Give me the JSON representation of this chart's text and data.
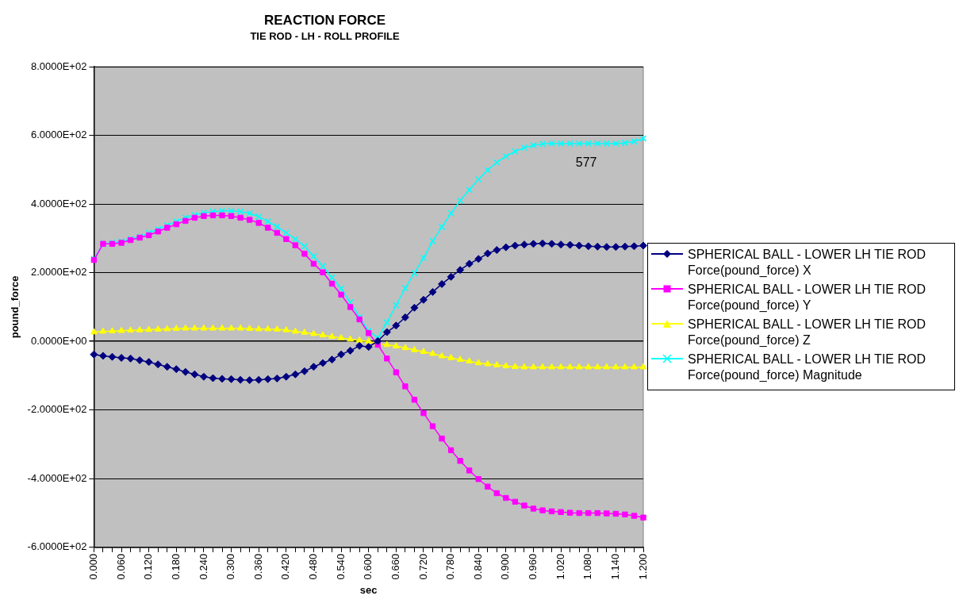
{
  "chart_data": {
    "type": "line",
    "title": "REACTION FORCE",
    "subtitle": "TIE ROD - LH - ROLL PROFILE",
    "xlabel": "sec",
    "ylabel": "pound_force",
    "categories": [
      "0.000",
      null,
      null,
      "0.060",
      null,
      null,
      "0.120",
      null,
      null,
      "0.180",
      null,
      null,
      "0.240",
      null,
      null,
      "0.300",
      null,
      null,
      "0.360",
      null,
      null,
      "0.420",
      null,
      null,
      "0.480",
      null,
      null,
      "0.540",
      null,
      null,
      "0.600",
      null,
      null,
      "0.660",
      null,
      null,
      "0.720",
      null,
      null,
      "0.780",
      null,
      null,
      "0.840",
      null,
      null,
      "0.900",
      null,
      null,
      "0.960",
      null,
      null,
      "1.020",
      null,
      null,
      "1.080",
      null,
      null,
      "1.140",
      null,
      null,
      "1.200"
    ],
    "ylim": [
      -600,
      800
    ],
    "yticks": [
      {
        "value": -600,
        "label": "-6.0000E+02"
      },
      {
        "value": -400,
        "label": "-4.0000E+02"
      },
      {
        "value": -200,
        "label": "-2.0000E+02"
      },
      {
        "value": 0,
        "label": "0.0000E+00"
      },
      {
        "value": 200,
        "label": "2.0000E+02"
      },
      {
        "value": 400,
        "label": "4.0000E+02"
      },
      {
        "value": 600,
        "label": "6.0000E+02"
      },
      {
        "value": 800,
        "label": "8.0000E+02"
      }
    ],
    "grid": "y",
    "legend": "right",
    "annotations": [
      "577"
    ],
    "series": [
      {
        "name": "SPHERICAL BALL - LOWER LH TIE ROD Force(pound_force) X",
        "color": "#000080",
        "marker": "diamond",
        "values": [
          -38,
          -42,
          -45,
          -48,
          -50,
          -55,
          -60,
          -67,
          -74,
          -81,
          -89,
          -96,
          -103,
          -107,
          -109,
          -110,
          -112,
          -113,
          -112,
          -110,
          -108,
          -103,
          -96,
          -87,
          -74,
          -63,
          -53,
          -38,
          -27,
          -13,
          -16,
          1,
          27,
          46,
          70,
          98,
          121,
          144,
          167,
          188,
          208,
          226,
          240,
          256,
          266,
          274,
          279,
          282,
          284,
          285,
          284,
          282,
          281,
          279,
          277,
          276,
          275,
          275,
          276,
          277,
          279
        ]
      },
      {
        "name": "SPHERICAL BALL - LOWER LH TIE ROD Force(pound_force) Y",
        "color": "#ff00ff",
        "marker": "square",
        "values": [
          237,
          284,
          284,
          287,
          295,
          302,
          309,
          320,
          331,
          341,
          351,
          360,
          365,
          367,
          367,
          365,
          360,
          354,
          345,
          331,
          316,
          298,
          280,
          255,
          226,
          201,
          168,
          136,
          100,
          64,
          24,
          -10,
          -50,
          -90,
          -131,
          -170,
          -209,
          -247,
          -283,
          -317,
          -348,
          -376,
          -401,
          -423,
          -442,
          -456,
          -467,
          -478,
          -487,
          -492,
          -495,
          -497,
          -499,
          -500,
          -500,
          -500,
          -501,
          -502,
          -504,
          -508,
          -513
        ]
      },
      {
        "name": "SPHERICAL BALL - LOWER LH TIE ROD Force(pound_force) Z",
        "color": "#ffff00",
        "marker": "triangle",
        "values": [
          27,
          29,
          30,
          31,
          32,
          33,
          34,
          35,
          36,
          37,
          38,
          38,
          38,
          38,
          38,
          38,
          38,
          37,
          36,
          36,
          35,
          33,
          29,
          26,
          22,
          18,
          14,
          10,
          6,
          3,
          0,
          -7,
          -10,
          -14,
          -19,
          -25,
          -30,
          -36,
          -43,
          -48,
          -53,
          -58,
          -63,
          -66,
          -69,
          -72,
          -74,
          -75,
          -75,
          -75,
          -75,
          -75,
          -75,
          -75,
          -75,
          -75,
          -75,
          -75,
          -75,
          -75,
          -75
        ]
      },
      {
        "name": "SPHERICAL BALL - LOWER LH TIE ROD Force(pound_force) Magnitude",
        "color": "#00ffff",
        "marker": "cross",
        "values": [
          240,
          284,
          287,
          291,
          298,
          305,
          316,
          327,
          338,
          349,
          360,
          368,
          374,
          378,
          380,
          380,
          378,
          373,
          363,
          349,
          334,
          316,
          298,
          277,
          248,
          219,
          186,
          154,
          114,
          71,
          31,
          10,
          55,
          105,
          155,
          199,
          243,
          292,
          333,
          373,
          410,
          441,
          472,
          499,
          521,
          539,
          553,
          564,
          571,
          575,
          576,
          576,
          576,
          576,
          576,
          576,
          576,
          576,
          578,
          582,
          591
        ]
      }
    ]
  }
}
